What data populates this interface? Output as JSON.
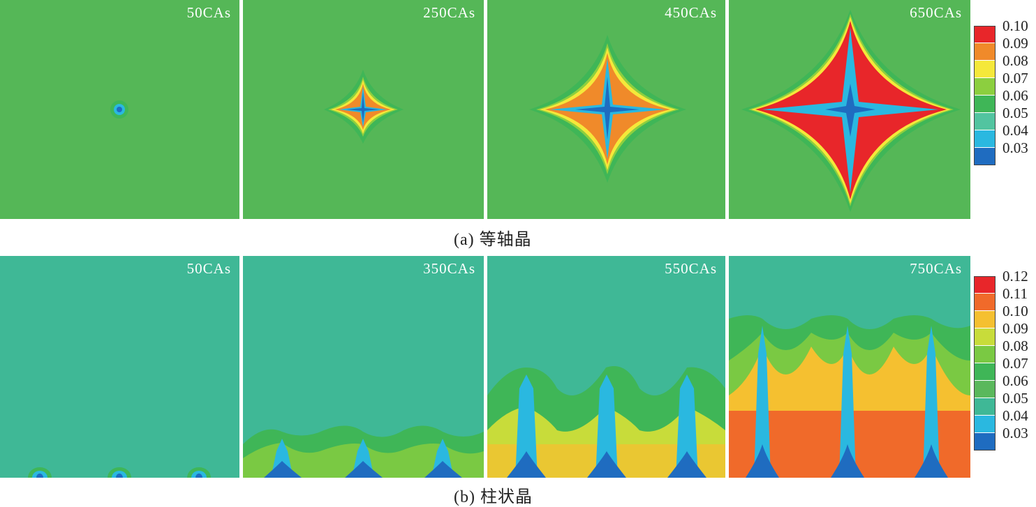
{
  "row_a": {
    "caption": "(a) 等轴晶",
    "panels": [
      {
        "label": "50CAs"
      },
      {
        "label": "250CAs"
      },
      {
        "label": "450CAs"
      },
      {
        "label": "650CAs"
      }
    ],
    "legend": [
      "0.10",
      "0.09",
      "0.08",
      "0.07",
      "0.06",
      "0.05",
      "0.04",
      "0.03"
    ],
    "legend_colors": [
      "#e8262a",
      "#f08a2a",
      "#f5e83a",
      "#8ccf3f",
      "#3fb657",
      "#52c4a0",
      "#2ab8e0",
      "#1f6cc0"
    ]
  },
  "row_b": {
    "caption": "(b) 柱状晶",
    "panels": [
      {
        "label": "50CAs"
      },
      {
        "label": "350CAs"
      },
      {
        "label": "550CAs"
      },
      {
        "label": "750CAs"
      }
    ],
    "legend": [
      "0.12",
      "0.11",
      "0.10",
      "0.09",
      "0.08",
      "0.07",
      "0.06",
      "0.05",
      "0.04",
      "0.03"
    ],
    "legend_colors": [
      "#e8262a",
      "#f06a2a",
      "#f5c030",
      "#c8dc3a",
      "#7ac943",
      "#3fb657",
      "#5ab85c",
      "#3fb896",
      "#2ab8e0",
      "#1f6cc0"
    ]
  },
  "colors": {
    "bg_a": "#55b757",
    "bg_b": "#3fb896",
    "red": "#e8262a",
    "orange": "#f08a2a",
    "yellow": "#f5e83a",
    "lightgreen": "#8ccf3f",
    "green": "#3fb657",
    "cyan": "#2ab8e0",
    "blue": "#1f6cc0",
    "darkblue": "#2a2f9a"
  }
}
